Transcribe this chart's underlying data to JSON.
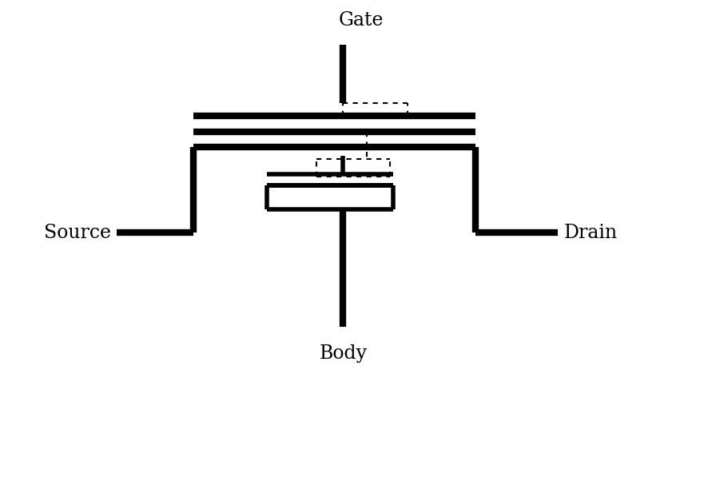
{
  "background_color": "#ffffff",
  "line_color": "#000000",
  "dashed_color": "#000000",
  "thick_lw": 6,
  "medium_lw": 4,
  "thin_lw": 1.5,
  "gate_label": "Gate",
  "source_label": "Source",
  "drain_label": "Drain",
  "body_label": "Body",
  "label_fontsize": 17,
  "figsize": [
    8.81,
    5.97
  ],
  "dpi": 100,
  "xlim": [
    0,
    10
  ],
  "ylim": [
    0,
    8
  ]
}
